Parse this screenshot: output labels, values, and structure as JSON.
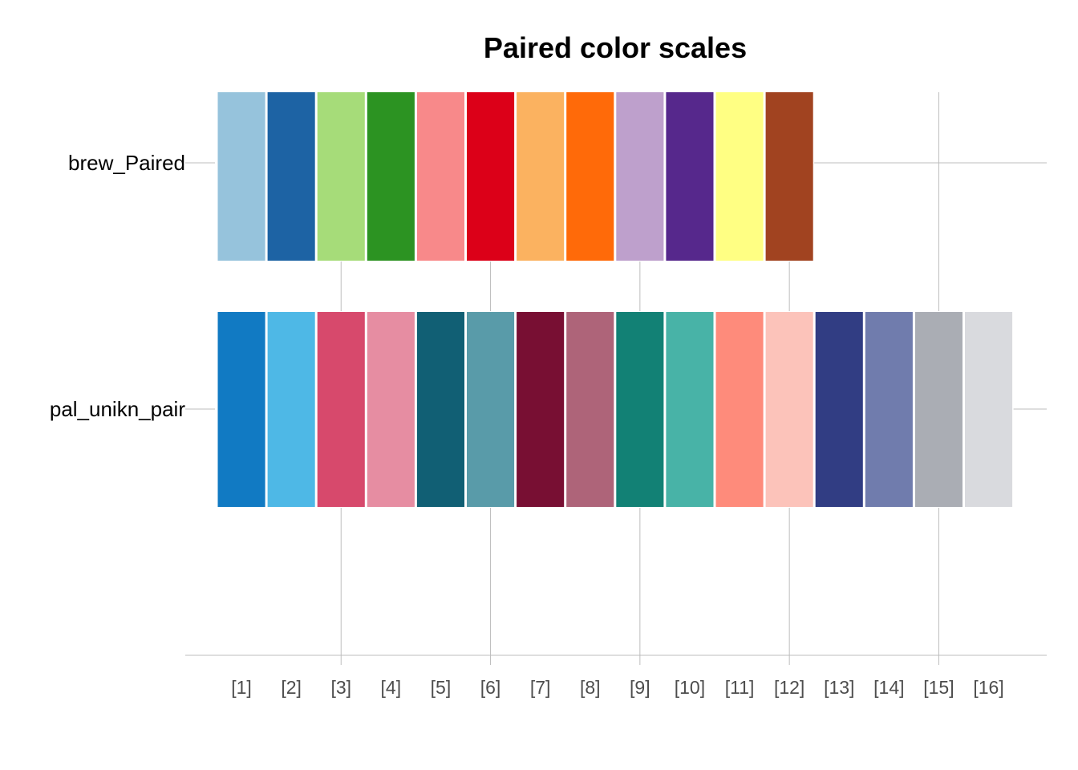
{
  "chart_data": {
    "type": "table",
    "title": "Paired color scales",
    "xlabel": "",
    "ylabel": "",
    "x_tick_labels": [
      "[1]",
      "[2]",
      "[3]",
      "[4]",
      "[5]",
      "[6]",
      "[7]",
      "[8]",
      "[9]",
      "[10]",
      "[11]",
      "[12]",
      "[13]",
      "[14]",
      "[15]",
      "[16]"
    ],
    "grid": true,
    "legend": "none",
    "series": [
      {
        "name": "brew_Paired",
        "colors": [
          "#96C3DC",
          "#1D63A4",
          "#A6DC79",
          "#2C9322",
          "#F8898A",
          "#DC0018",
          "#FBB260",
          "#FF6A09",
          "#BEA0CC",
          "#56288C",
          "#FFFF83",
          "#A14320"
        ]
      },
      {
        "name": "pal_unikn_pair",
        "colors": [
          "#117AC3",
          "#4EB8E6",
          "#D7496C",
          "#E68DA2",
          "#115F74",
          "#599BA9",
          "#780F33",
          "#AE6479",
          "#128175",
          "#48B3A7",
          "#FE8B7B",
          "#FCC3BA",
          "#313D83",
          "#707CAD",
          "#AAADB4",
          "#D9DADE"
        ]
      }
    ]
  }
}
